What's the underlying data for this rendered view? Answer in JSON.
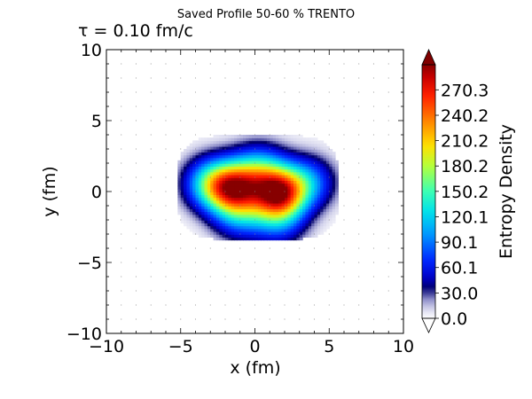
{
  "figure": {
    "title": "Saved Profile 50-60 % TRENTO",
    "time_label": "τ = 0.10 fm/c"
  },
  "chart_data": {
    "type": "heatmap",
    "title": "Saved Profile 50-60 % TRENTO",
    "annotation": "τ = 0.10 fm/c",
    "xlabel": "x (fm)",
    "ylabel": "y (fm)",
    "xlim": [
      -10,
      10
    ],
    "ylim": [
      -10,
      10
    ],
    "xticks": [
      -10,
      -5,
      0,
      5,
      10
    ],
    "yticks": [
      -10,
      -5,
      0,
      5,
      10
    ],
    "xtick_labels": [
      "−10",
      "−5",
      "0",
      "5",
      "10"
    ],
    "ytick_labels": [
      "−10",
      "−5",
      "0",
      "5",
      "10"
    ],
    "colorbar": {
      "label": "Entropy Density",
      "min": 0.0,
      "max": 300.0,
      "ticks": [
        0.0,
        30.0,
        60.1,
        90.1,
        120.1,
        150.2,
        180.2,
        210.2,
        240.2,
        270.3
      ],
      "tick_labels": [
        "0.0",
        "30.0",
        "60.1",
        "90.1",
        "120.1",
        "150.2",
        "180.2",
        "210.2",
        "240.2",
        "270.3"
      ],
      "extend": "both",
      "colormap": "white-purple-blue-jet"
    },
    "colors": {
      "under": "#ffffff",
      "over": "#800000"
    },
    "grid": "dotted points",
    "hotspots": [
      {
        "x": 1.6,
        "y": -0.05,
        "peak": 250
      },
      {
        "x": -1.4,
        "y": 0.3,
        "peak": 212
      },
      {
        "x": -3.0,
        "y": 0.6,
        "peak": 118
      },
      {
        "x": 0.3,
        "y": 1.6,
        "peak": 95
      },
      {
        "x": 3.6,
        "y": 0.7,
        "peak": 85
      },
      {
        "x": -1.0,
        "y": -1.6,
        "peak": 80
      },
      {
        "x": 1.6,
        "y": -2.0,
        "peak": 70
      }
    ],
    "support": {
      "x_range": [
        -5.2,
        5.6
      ],
      "y_range": [
        -3.4,
        4.0
      ]
    }
  }
}
